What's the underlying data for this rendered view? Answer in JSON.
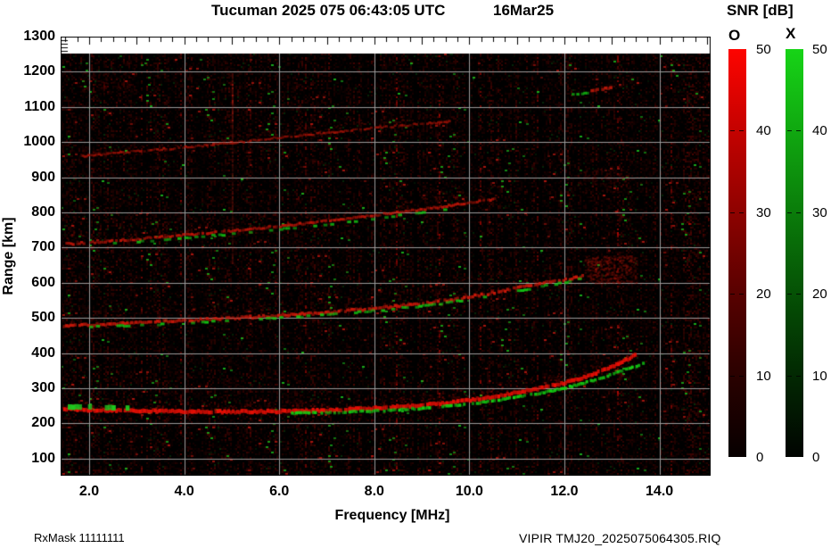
{
  "title": {
    "main": "Tucuman 2025 075 06:43:05 UTC",
    "date": "16Mar25"
  },
  "legend": {
    "title": "SNR [dB]",
    "o_label": "O",
    "x_label": "X",
    "o_color": "#ff0000",
    "x_color": "#16d416",
    "min_db": 0,
    "max_db": 50,
    "ticks": [
      {
        "label": "50",
        "value": 50
      },
      {
        "label": "40",
        "value": 40
      },
      {
        "label": "30",
        "value": 30
      },
      {
        "label": "20",
        "value": 20
      },
      {
        "label": "10",
        "value": 10
      },
      {
        "label": "0",
        "value": 0
      }
    ]
  },
  "axes": {
    "x_label": "Frequency [MHz]",
    "y_label": "Range [km]",
    "x_ticks": [
      {
        "label": "2.0",
        "value": 2
      },
      {
        "label": "4.0",
        "value": 4
      },
      {
        "label": "6.0",
        "value": 6
      },
      {
        "label": "8.0",
        "value": 8
      },
      {
        "label": "10.0",
        "value": 10
      },
      {
        "label": "12.0",
        "value": 12
      },
      {
        "label": "14.0",
        "value": 14
      }
    ],
    "y_ticks": [
      {
        "label": "1300",
        "value": 1300
      },
      {
        "label": "1200",
        "value": 1200
      },
      {
        "label": "1100",
        "value": 1100
      },
      {
        "label": "1000",
        "value": 1000
      },
      {
        "label": "900",
        "value": 900
      },
      {
        "label": "800",
        "value": 800
      },
      {
        "label": "700",
        "value": 700
      },
      {
        "label": "600",
        "value": 600
      },
      {
        "label": "500",
        "value": 500
      },
      {
        "label": "400",
        "value": 400
      },
      {
        "label": "300",
        "value": 300
      },
      {
        "label": "200",
        "value": 200
      },
      {
        "label": "100",
        "value": 100
      }
    ]
  },
  "footer": {
    "left": "RxMask 11111111",
    "right": "VIPIR  TMJ20_2025075064305.RIQ"
  },
  "chart_data": {
    "type": "heatmap",
    "title": "Tucuman 2025 075 06:43:05 UTC",
    "station": "Tucuman",
    "timestamp": "2025 075 06:43:05 UTC",
    "date": "16Mar25",
    "xlabel": "Frequency [MHz]",
    "ylabel": "Range [km]",
    "xlim": [
      1.4,
      15.08
    ],
    "ylim": [
      50,
      1300
    ],
    "grid": {
      "x_step_mhz": 2,
      "y_step_km": 100,
      "color": "#9a9a9a"
    },
    "background": "#000000",
    "no_data_band_km": [
      1252,
      1300
    ],
    "colorbar": {
      "label": "SNR [dB]",
      "range_db": [
        0,
        50
      ],
      "o_mode_color": "#ff0000",
      "x_mode_color": "#16d416"
    },
    "traces": [
      {
        "id": "F-1hop-O",
        "mode": "O",
        "color": "#eb0f05",
        "width": 4.5,
        "prob": 0.97,
        "jitter": 2,
        "alpha": [
          0.6,
          1.0
        ],
        "diffuse_km": 30,
        "chunk": 2.5,
        "points": [
          [
            1.45,
            241
          ],
          [
            2,
            238
          ],
          [
            3,
            236
          ],
          [
            4,
            234
          ],
          [
            5,
            233
          ],
          [
            6,
            234
          ],
          [
            7,
            237
          ],
          [
            8,
            243
          ],
          [
            9,
            252
          ],
          [
            9.5,
            258
          ],
          [
            10,
            266
          ],
          [
            10.5,
            276
          ],
          [
            11,
            288
          ],
          [
            11.5,
            301
          ],
          [
            12,
            316
          ],
          [
            12.3,
            327
          ],
          [
            12.6,
            341
          ],
          [
            12.9,
            357
          ],
          [
            13.15,
            372
          ],
          [
            13.35,
            386
          ],
          [
            13.5,
            400
          ]
        ]
      },
      {
        "id": "F-1hop-X",
        "mode": "X",
        "color": "#14d214",
        "width": 3.5,
        "prob": 0.8,
        "jitter": 1.5,
        "alpha": [
          0.5,
          1.0
        ],
        "diffuse_km": 0,
        "chunk": 2.5,
        "points": [
          [
            6.2,
            229
          ],
          [
            7,
            231
          ],
          [
            8,
            235
          ],
          [
            9,
            243
          ],
          [
            10,
            255
          ],
          [
            10.5,
            264
          ],
          [
            11,
            275
          ],
          [
            11.5,
            287
          ],
          [
            12,
            301
          ],
          [
            12.4,
            315
          ],
          [
            12.8,
            331
          ],
          [
            13.1,
            346
          ],
          [
            13.4,
            360
          ],
          [
            13.68,
            371
          ]
        ]
      },
      {
        "id": "F-1hop-X-lowfreq",
        "mode": "X",
        "color": "#1ec81e",
        "width": 6,
        "prob": 0.32,
        "jitter": 1,
        "alpha": [
          0.55,
          1.0
        ],
        "diffuse_km": 0,
        "chunk": 4,
        "points": [
          [
            1.55,
            247
          ],
          [
            2.4,
            245
          ],
          [
            3.35,
            243
          ]
        ]
      },
      {
        "id": "F-2hop-O",
        "mode": "O",
        "color": "#d2190a",
        "width": 3.5,
        "prob": 0.9,
        "jitter": 2.5,
        "alpha": [
          0.45,
          0.95
        ],
        "diffuse_km": 55,
        "chunk": 2.5,
        "points": [
          [
            1.45,
            477
          ],
          [
            2,
            481
          ],
          [
            3,
            486
          ],
          [
            4,
            492
          ],
          [
            5,
            499
          ],
          [
            6,
            507
          ],
          [
            7,
            516
          ],
          [
            8,
            527
          ],
          [
            9,
            541
          ],
          [
            9.5,
            550
          ],
          [
            10,
            560
          ],
          [
            10.5,
            572
          ],
          [
            11,
            585
          ],
          [
            11.5,
            598
          ],
          [
            12,
            609
          ],
          [
            12.4,
            619
          ]
        ]
      },
      {
        "id": "F-2hop-X",
        "mode": "X",
        "color": "#14c814",
        "width": 3,
        "prob": 0.4,
        "jitter": 1.5,
        "alpha": [
          0.5,
          0.95
        ],
        "diffuse_km": 0,
        "chunk": 4,
        "points": [
          [
            2,
            474
          ],
          [
            3,
            479
          ],
          [
            4,
            485
          ],
          [
            5,
            492
          ],
          [
            6,
            500
          ],
          [
            7,
            509
          ],
          [
            8,
            520
          ],
          [
            9,
            534
          ],
          [
            10,
            552
          ],
          [
            10.5,
            564
          ],
          [
            11,
            577
          ],
          [
            11.5,
            590
          ],
          [
            12,
            601
          ],
          [
            12.35,
            611
          ]
        ]
      },
      {
        "id": "F-3hop-O",
        "mode": "O",
        "color": "#c81608",
        "width": 3,
        "prob": 0.88,
        "jitter": 2,
        "alpha": [
          0.4,
          0.9
        ],
        "diffuse_km": 40,
        "chunk": 2.5,
        "points": [
          [
            1.5,
            710
          ],
          [
            2,
            714
          ],
          [
            3,
            724
          ],
          [
            4,
            736
          ],
          [
            5,
            748
          ],
          [
            6,
            761
          ],
          [
            7,
            776
          ],
          [
            8,
            792
          ],
          [
            9,
            809
          ],
          [
            9.5,
            818
          ],
          [
            10,
            828
          ],
          [
            10.6,
            840
          ]
        ]
      },
      {
        "id": "F-3hop-X",
        "mode": "X",
        "color": "#14c314",
        "width": 3,
        "prob": 0.3,
        "jitter": 1.5,
        "alpha": [
          0.5,
          0.9
        ],
        "diffuse_km": 0,
        "chunk": 4,
        "points": [
          [
            2.5,
            712
          ],
          [
            3.5,
            722
          ],
          [
            4.5,
            733
          ],
          [
            5.5,
            745
          ],
          [
            6.5,
            759
          ],
          [
            7.5,
            774
          ],
          [
            8.5,
            791
          ],
          [
            9,
            800
          ],
          [
            9.6,
            811
          ]
        ]
      },
      {
        "id": "F-4hop-O",
        "mode": "O",
        "color": "#b91407",
        "width": 2.5,
        "prob": 0.85,
        "jitter": 2,
        "alpha": [
          0.35,
          0.8
        ],
        "diffuse_km": 25,
        "chunk": 2.5,
        "points": [
          [
            1.8,
            958
          ],
          [
            2,
            962
          ],
          [
            3,
            974
          ],
          [
            4,
            985
          ],
          [
            5,
            998
          ],
          [
            6,
            1013
          ],
          [
            7,
            1027
          ],
          [
            8,
            1040
          ],
          [
            8.5,
            1046
          ],
          [
            9,
            1052
          ],
          [
            9.6,
            1058
          ]
        ]
      },
      {
        "id": "echo-1140km-O",
        "mode": "O",
        "color": "#c81a0a",
        "width": 3.5,
        "prob": 0.75,
        "jitter": 1.5,
        "alpha": [
          0.5,
          0.9
        ],
        "diffuse_km": 0,
        "chunk": 3,
        "points": [
          [
            12.55,
            1146
          ],
          [
            13.0,
            1156
          ]
        ]
      },
      {
        "id": "echo-1140km-X",
        "mode": "X",
        "color": "#14c814",
        "width": 3,
        "prob": 0.7,
        "jitter": 1,
        "alpha": [
          0.5,
          0.9
        ],
        "diffuse_km": 0,
        "chunk": 3,
        "points": [
          [
            12.15,
            1136
          ],
          [
            12.55,
            1140
          ]
        ]
      }
    ],
    "diffuse_patches": [
      {
        "f": [
          12.42,
          13.5
        ],
        "r": [
          600,
          678
        ],
        "n": 300,
        "color": "#961208",
        "alpha": [
          0.12,
          0.5
        ]
      },
      {
        "f": [
          12.25,
          13.35
        ],
        "r": [
          858,
          925
        ],
        "n": 90,
        "color": "#780c06",
        "alpha": [
          0.1,
          0.35
        ]
      },
      {
        "f": [
          1.85,
          2.9
        ],
        "r": [
          1145,
          1200
        ],
        "n": 70,
        "color": "#6e0c06",
        "alpha": [
          0.1,
          0.3
        ]
      }
    ],
    "rfi_line": {
      "freq_mhz": 5.0,
      "range_km": [
        655,
        1195
      ],
      "color": "#cd1e12"
    },
    "noise": {
      "red": "#cd0a05",
      "green": "#14961e",
      "density": 0.5
    }
  }
}
